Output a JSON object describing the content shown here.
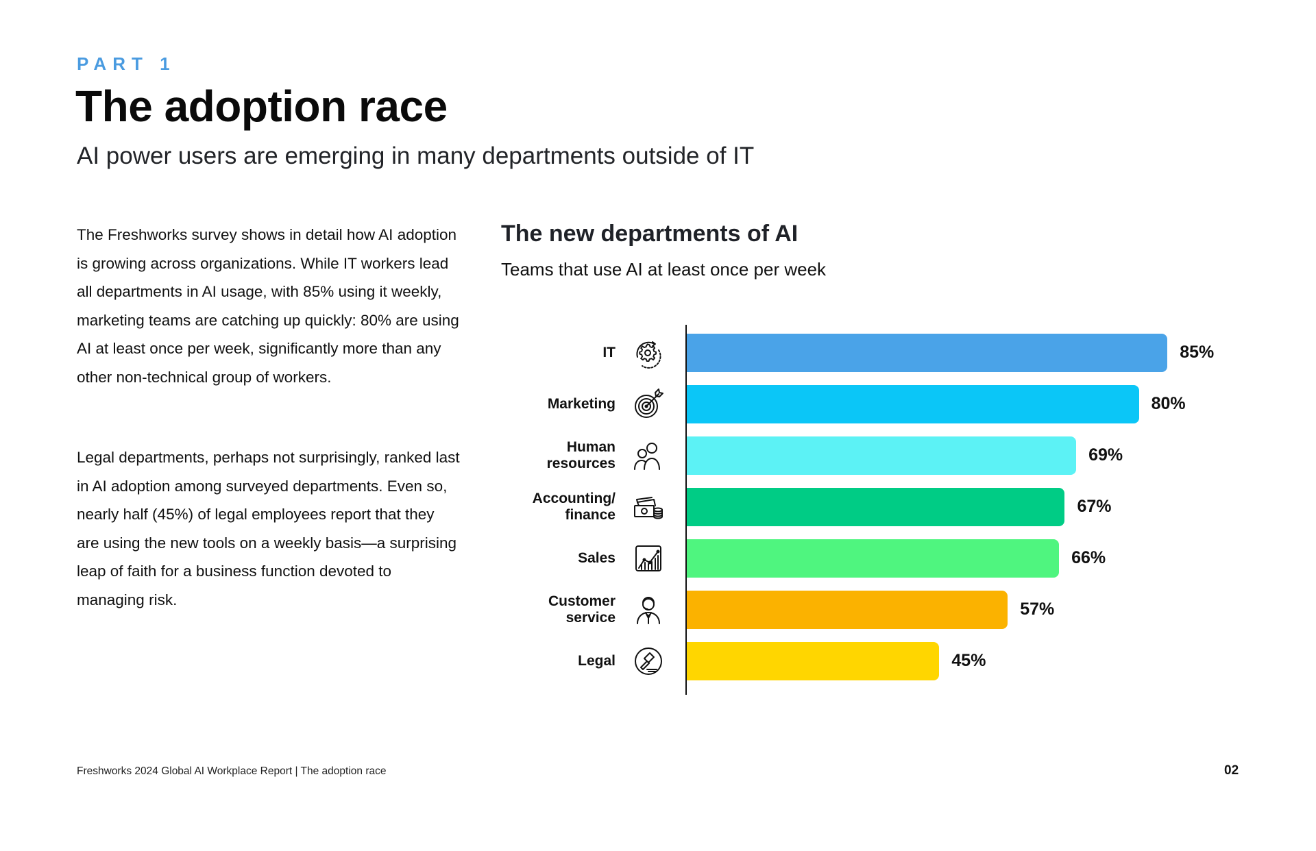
{
  "header": {
    "eyebrow": "PART 1",
    "title": "The adoption race",
    "subtitle": "AI power users are emerging in many departments outside of IT"
  },
  "body": {
    "paragraphs": [
      "The Freshworks survey shows in detail how AI adoption is growing across organizations. While IT workers lead all departments in AI usage, with 85% using it weekly, marketing teams are catching up quickly: 80% are using AI at least once per week, significantly more than any other non-technical group of workers.",
      "Legal departments, perhaps not surprisingly, ranked last in AI adoption among surveyed departments. Even so, nearly half (45%) of legal employees report that they are using the new tools on a weekly basis—a surprising leap of faith for a business function devoted to managing risk."
    ]
  },
  "footer": {
    "text": "Freshworks 2024 Global AI Workplace Report | The adoption race",
    "page_number": "02"
  },
  "chart_data": {
    "type": "bar",
    "orientation": "horizontal",
    "title": "The new departments of AI",
    "subtitle": "Teams that use AI at least once per week",
    "xlabel": "",
    "ylabel": "",
    "xlim": [
      0,
      100
    ],
    "grid": false,
    "legend": "none",
    "unit": "%",
    "categories": [
      "IT",
      "Marketing",
      "Human\nresources",
      "Accounting/\nfinance",
      "Sales",
      "Customer\nservice",
      "Legal"
    ],
    "values": [
      85,
      80,
      69,
      67,
      66,
      57,
      45
    ],
    "value_labels": [
      "85%",
      "80%",
      "69%",
      "67%",
      "66%",
      "57%",
      "45%"
    ],
    "colors": [
      "#4aa3e8",
      "#0bc6f7",
      "#5cf2f5",
      "#00cc85",
      "#4ff57f",
      "#fbb200",
      "#ffd600"
    ],
    "icons": [
      "gear-cycle-icon",
      "target-arrow-icon",
      "people-icon",
      "money-coins-icon",
      "growth-chart-icon",
      "support-agent-icon",
      "gavel-icon"
    ]
  }
}
